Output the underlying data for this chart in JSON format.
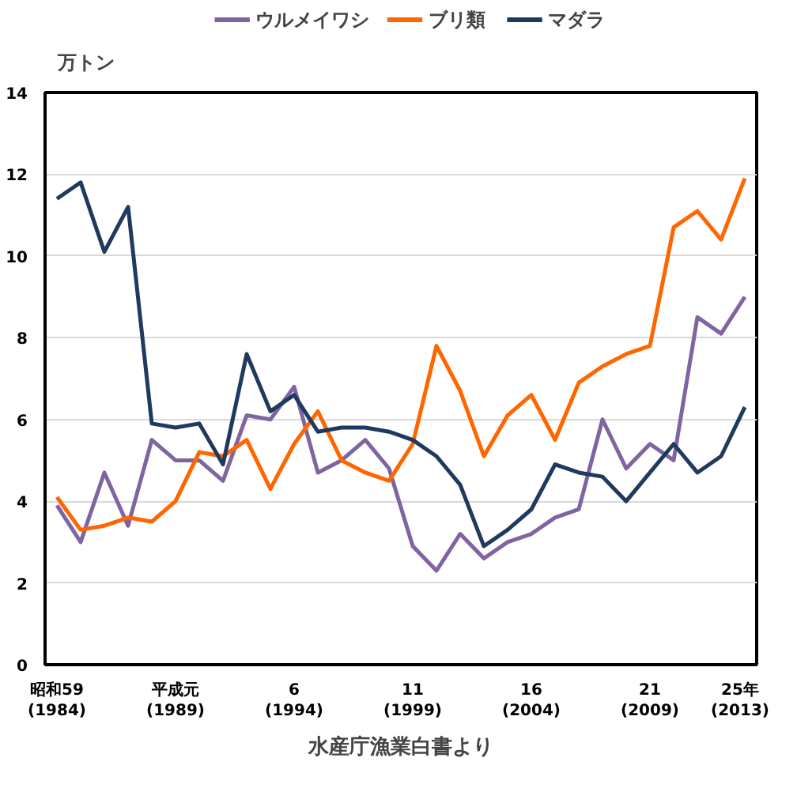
{
  "chart_data": {
    "type": "line",
    "ylabel": "万トン",
    "annotations": [
      "水産庁漁業白書より"
    ],
    "categories": [
      "昭和59\n(1984)",
      null,
      null,
      null,
      null,
      "平成元\n(1989)",
      null,
      null,
      null,
      null,
      "6\n(1994)",
      null,
      null,
      null,
      null,
      "11\n(1999)",
      null,
      null,
      null,
      null,
      "16\n(2004)",
      null,
      null,
      null,
      null,
      "21\n(2009)",
      null,
      null,
      null,
      "25年\n(2013)"
    ],
    "series": [
      {
        "name": "ウルメイワシ",
        "color": "#8064a2",
        "values": [
          3.9,
          3.0,
          4.7,
          3.4,
          5.5,
          5.0,
          5.0,
          4.5,
          6.1,
          6.0,
          6.8,
          4.7,
          5.0,
          5.5,
          4.8,
          2.9,
          2.3,
          3.2,
          2.6,
          3.0,
          3.2,
          3.6,
          3.8,
          6.0,
          4.8,
          5.4,
          5.0,
          8.5,
          8.1,
          9.0
        ]
      },
      {
        "name": "ブリ類",
        "color": "#ff6600",
        "values": [
          4.1,
          3.3,
          3.4,
          3.6,
          3.5,
          4.0,
          5.2,
          5.1,
          5.5,
          4.3,
          5.4,
          6.2,
          5.0,
          4.7,
          4.5,
          5.4,
          7.8,
          6.7,
          5.1,
          6.1,
          6.6,
          5.5,
          6.9,
          7.3,
          7.6,
          7.8,
          10.7,
          11.1,
          10.4,
          11.9
        ]
      },
      {
        "name": "マダラ",
        "color": "#1f3a5f",
        "values": [
          11.4,
          11.8,
          10.1,
          11.2,
          5.9,
          5.8,
          5.9,
          4.9,
          7.6,
          6.2,
          6.6,
          5.7,
          5.8,
          5.8,
          5.7,
          5.5,
          5.1,
          4.4,
          2.9,
          3.3,
          3.8,
          4.9,
          4.7,
          4.6,
          4.0,
          4.7,
          5.4,
          4.7,
          5.1,
          6.3
        ]
      }
    ],
    "ylim": [
      0,
      14
    ],
    "yticks": [
      0,
      2,
      4,
      6,
      8,
      10,
      12,
      14
    ],
    "grid": "y",
    "legend": "top",
    "line_style": "solid",
    "marker": "none"
  }
}
